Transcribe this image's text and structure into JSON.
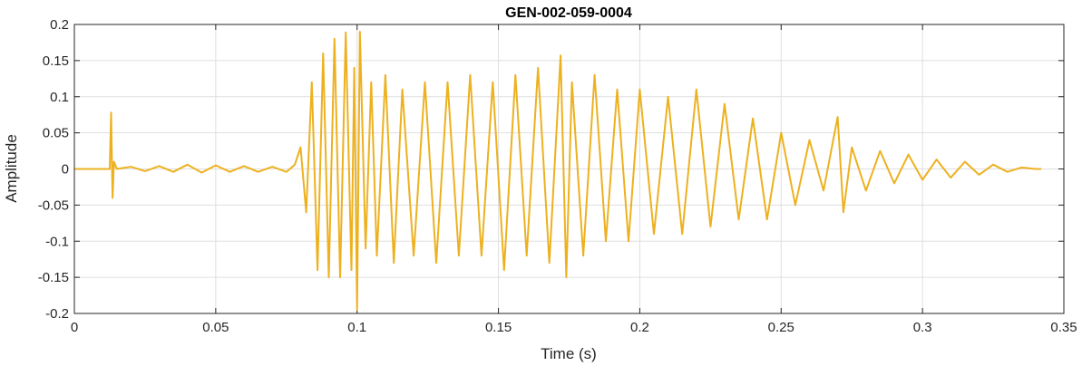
{
  "chart_data": {
    "type": "line",
    "title": "GEN-002-059-0004",
    "xlabel": "Time (s)",
    "ylabel": "Amplitude",
    "xlim": [
      0,
      0.35
    ],
    "ylim": [
      -0.2,
      0.2
    ],
    "grid": true,
    "x_ticks": [
      "0",
      "0.05",
      "0.1",
      "0.15",
      "0.2",
      "0.25",
      "0.3",
      "0.35"
    ],
    "y_ticks": [
      "0.2",
      "0.15",
      "0.1",
      "0.05",
      "0",
      "-0.05",
      "-0.1",
      "-0.15",
      "-0.2"
    ],
    "line_color": "#EDB120",
    "series": [
      {
        "x": [
          0.0,
          0.005,
          0.01,
          0.0125,
          0.013,
          0.0135,
          0.014,
          0.015,
          0.02,
          0.025,
          0.03,
          0.035,
          0.04,
          0.045,
          0.05,
          0.055,
          0.06,
          0.065,
          0.07,
          0.075,
          0.078,
          0.08,
          0.082,
          0.084,
          0.086,
          0.088,
          0.09,
          0.092,
          0.094,
          0.096,
          0.098,
          0.099,
          0.1,
          0.101,
          0.103,
          0.105,
          0.107,
          0.11,
          0.113,
          0.116,
          0.12,
          0.124,
          0.128,
          0.132,
          0.136,
          0.14,
          0.144,
          0.148,
          0.152,
          0.156,
          0.16,
          0.164,
          0.168,
          0.172,
          0.174,
          0.176,
          0.18,
          0.184,
          0.188,
          0.192,
          0.196,
          0.2,
          0.205,
          0.21,
          0.215,
          0.22,
          0.225,
          0.23,
          0.235,
          0.24,
          0.245,
          0.25,
          0.255,
          0.26,
          0.265,
          0.27,
          0.272,
          0.275,
          0.28,
          0.285,
          0.29,
          0.295,
          0.3,
          0.305,
          0.31,
          0.315,
          0.32,
          0.325,
          0.33,
          0.335,
          0.34,
          0.342
        ],
        "y": [
          0.0,
          0.0,
          0.0,
          0.0,
          0.078,
          -0.04,
          0.01,
          0.0,
          0.003,
          -0.003,
          0.004,
          -0.004,
          0.006,
          -0.005,
          0.005,
          -0.004,
          0.004,
          -0.004,
          0.003,
          -0.004,
          0.006,
          0.03,
          -0.06,
          0.12,
          -0.14,
          0.16,
          -0.15,
          0.18,
          -0.15,
          0.189,
          -0.14,
          0.14,
          -0.195,
          0.19,
          -0.11,
          0.12,
          -0.12,
          0.13,
          -0.13,
          0.11,
          -0.12,
          0.12,
          -0.13,
          0.12,
          -0.12,
          0.13,
          -0.12,
          0.12,
          -0.14,
          0.13,
          -0.12,
          0.14,
          -0.13,
          0.157,
          -0.15,
          0.12,
          -0.12,
          0.13,
          -0.1,
          0.11,
          -0.1,
          0.11,
          -0.09,
          0.1,
          -0.09,
          0.11,
          -0.08,
          0.09,
          -0.07,
          0.07,
          -0.07,
          0.05,
          -0.05,
          0.04,
          -0.03,
          0.072,
          -0.06,
          0.03,
          -0.03,
          0.025,
          -0.02,
          0.02,
          -0.015,
          0.013,
          -0.012,
          0.01,
          -0.008,
          0.006,
          -0.004,
          0.002,
          0.0,
          0.0
        ]
      }
    ]
  }
}
